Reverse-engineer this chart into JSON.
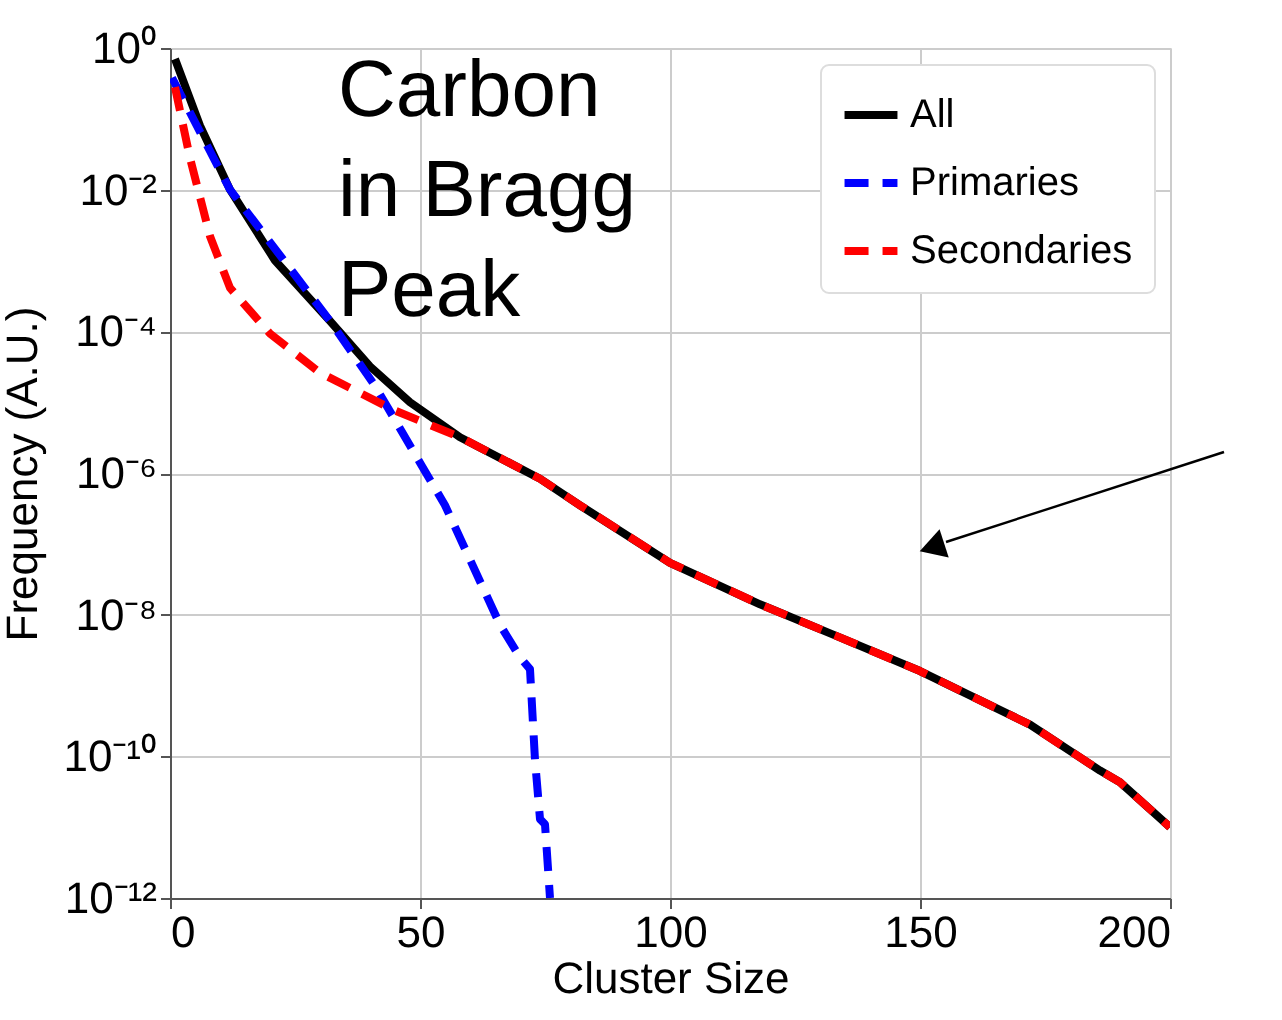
{
  "chart_data": {
    "type": "line",
    "xlabel": "Cluster Size",
    "ylabel": "Frequency (A.U.)",
    "annotations": [
      "Carbon\nin Bragg\nPeak"
    ],
    "xlim": [
      0,
      200
    ],
    "xticks": [
      0,
      50,
      100,
      150,
      200
    ],
    "ylim": [
      1e-12,
      1
    ],
    "log": true,
    "yticks": [
      {
        "value": 1,
        "label": "10⁰"
      },
      {
        "value": 0.01,
        "label": "10⁻²"
      },
      {
        "value": 0.0001,
        "label": "10⁻⁴"
      },
      {
        "value": 1e-06,
        "label": "10⁻⁶"
      },
      {
        "value": 1e-08,
        "label": "10⁻⁸"
      },
      {
        "value": 1e-10,
        "label": "10⁻¹⁰"
      },
      {
        "value": 1e-12,
        "label": "10⁻¹²"
      }
    ],
    "grid": true,
    "legend": "top right",
    "series": [
      {
        "name": "All",
        "color": "#000000",
        "line_style": "solid",
        "x": [
          1,
          6,
          12,
          21,
          32,
          40,
          48,
          58,
          74,
          82,
          100,
          118,
          133,
          150,
          172,
          186,
          190,
          200
        ],
        "values": [
          0.7,
          0.08,
          0.01,
          0.001,
          0.00014,
          3.2e-05,
          1e-05,
          3.2e-06,
          8.3e-07,
          3.5e-07,
          5.4e-08,
          1.4e-08,
          5.1e-09,
          1.6e-09,
          2.8e-10,
          6.3e-11,
          4.3e-11,
          1e-11
        ]
      },
      {
        "name": "Primaries",
        "color": "#0000ff",
        "line_style": "dashed",
        "x": [
          0.4,
          12,
          32,
          41,
          50,
          55,
          66,
          70,
          72,
          73,
          74,
          75,
          76
        ],
        "values": [
          0.38,
          0.01,
          0.00014,
          1.7e-05,
          1.4e-06,
          3.5e-07,
          7.2e-09,
          2.5e-09,
          1.7e-09,
          8.9e-11,
          1.3e-11,
          1.1e-11,
          1e-12
        ]
      },
      {
        "name": "Secondaries",
        "color": "#ff0000",
        "line_style": "dashed",
        "x": [
          1,
          4,
          8,
          12,
          20,
          30,
          45,
          58,
          74,
          82,
          100,
          118,
          133,
          150,
          172,
          186,
          190,
          200
        ],
        "values": [
          0.28,
          0.028,
          0.0022,
          0.00041,
          9.3e-05,
          2.6e-05,
          7.6e-06,
          3.2e-06,
          8.3e-07,
          3.5e-07,
          5.4e-08,
          1.4e-08,
          5.1e-09,
          1.6e-09,
          2.8e-10,
          6.3e-11,
          4.3e-11,
          1e-11
        ]
      }
    ]
  }
}
